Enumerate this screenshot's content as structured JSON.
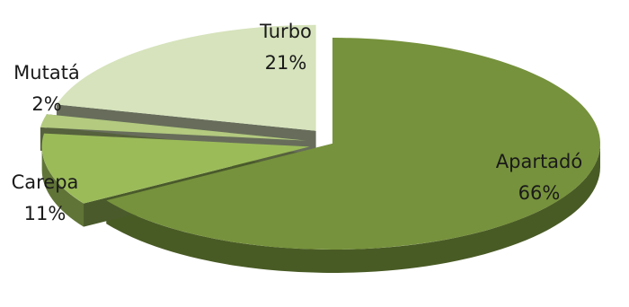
{
  "chart_data": {
    "type": "pie",
    "variant": "3d-exploded",
    "slices": [
      {
        "label": "Apartadó",
        "value": 66,
        "display": "66%",
        "color": "#76923c"
      },
      {
        "label": "Carepa",
        "value": 11,
        "display": "11%",
        "color": "#9bbb59"
      },
      {
        "label": "Mutatá",
        "value": 2,
        "display": "2%",
        "color": "#b3ca7f"
      },
      {
        "label": "Turbo",
        "value": 21,
        "display": "21%",
        "color": "#d6e3bc"
      }
    ],
    "legend": "none",
    "grid": false
  }
}
